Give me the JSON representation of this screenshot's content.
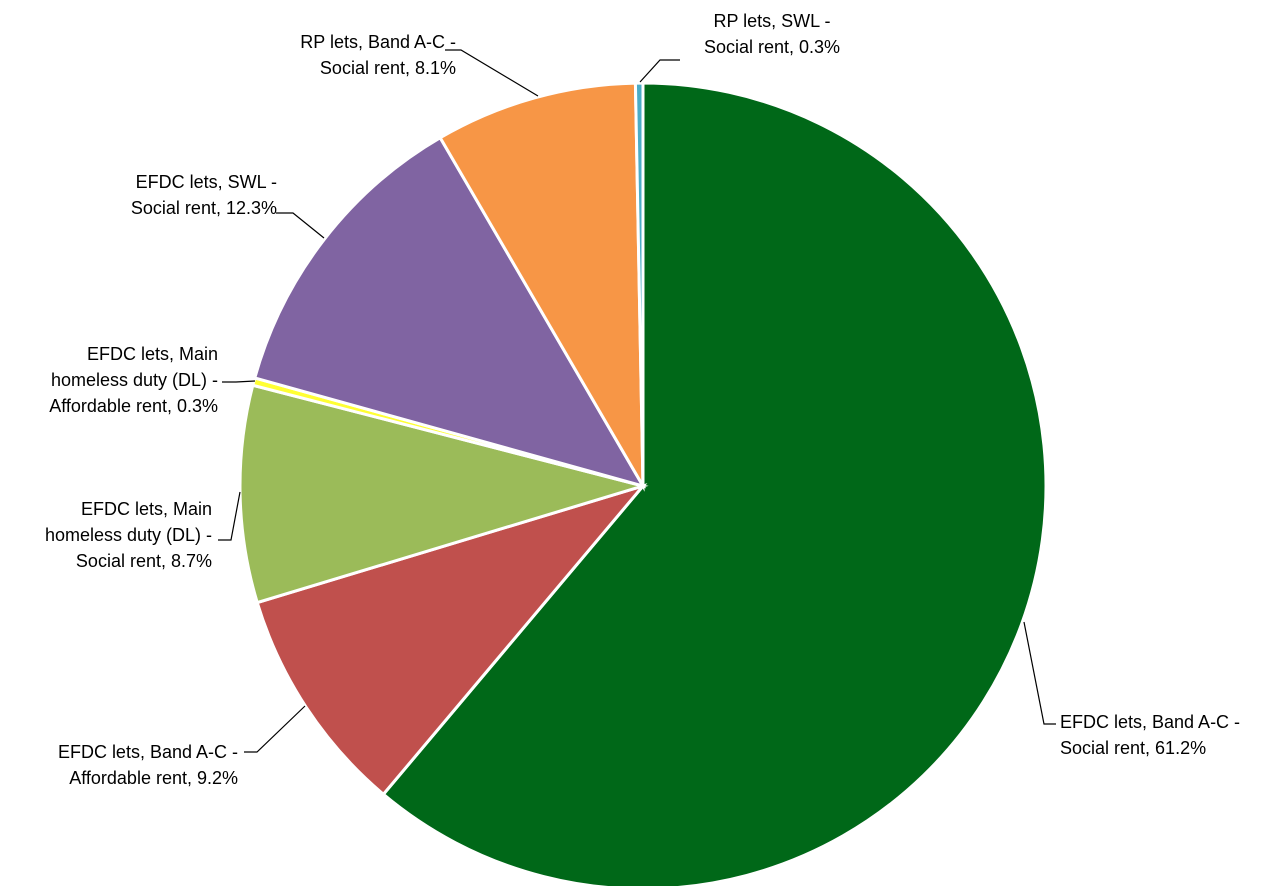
{
  "chart_data": {
    "type": "pie",
    "title": "",
    "slices": [
      {
        "label": [
          "EFDC lets, Band A-C -",
          "Social rent, 61.2%"
        ],
        "value": 61.2,
        "color": "#006818"
      },
      {
        "label": [
          "EFDC lets, Band A-C -",
          "Affordable rent, 9.2%"
        ],
        "value": 9.2,
        "color": "#C0504D"
      },
      {
        "label": [
          "EFDC lets, Main",
          "homeless duty (DL) -",
          "Social rent, 8.7%"
        ],
        "value": 8.7,
        "color": "#9BBB59"
      },
      {
        "label": [
          "EFDC lets, Main",
          "homeless duty (DL) -",
          "Affordable rent, 0.3%"
        ],
        "value": 0.3,
        "color": "#FFFF33"
      },
      {
        "label": [
          "EFDC lets, SWL -",
          "Social rent, 12.3%"
        ],
        "value": 12.3,
        "color": "#8064A2"
      },
      {
        "label": [
          "RP lets, Band A-C -",
          "Social rent, 8.1%"
        ],
        "value": 8.1,
        "color": "#F79646"
      },
      {
        "label": [
          "RP lets, SWL -",
          "Social rent, 0.3%"
        ],
        "value": 0.3,
        "color": "#4BACC6"
      }
    ]
  }
}
